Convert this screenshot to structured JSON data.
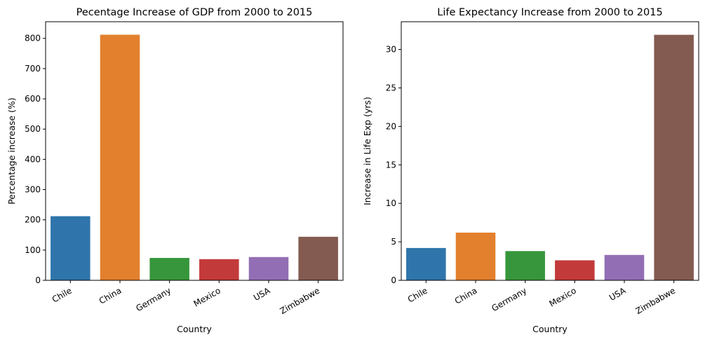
{
  "chart_data": [
    {
      "type": "bar",
      "title": "Pecentage Increase of GDP from 2000 to 2015",
      "xlabel": "Country",
      "ylabel": "Percentage increase (%)",
      "categories": [
        "Chile",
        "China",
        "Germany",
        "Mexico",
        "USA",
        "Zimbabwe"
      ],
      "values": [
        212,
        812,
        74,
        70,
        77,
        144
      ],
      "colors": [
        "#2f75ab",
        "#e3802e",
        "#37963b",
        "#c33a3a",
        "#926fb5",
        "#845b50"
      ],
      "ylim": [
        0,
        855
      ],
      "yticks": [
        0,
        100,
        200,
        300,
        400,
        500,
        600,
        700,
        800
      ],
      "grid": false,
      "legend": "none"
    },
    {
      "type": "bar",
      "title": "Life Expectancy Increase from 2000 to 2015",
      "xlabel": "Country",
      "ylabel": "Increase in Life Exp (yrs)",
      "categories": [
        "Chile",
        "China",
        "Germany",
        "Mexico",
        "USA",
        "Zimbabwe"
      ],
      "values": [
        4.2,
        6.2,
        3.8,
        2.6,
        3.3,
        31.9
      ],
      "colors": [
        "#2f75ab",
        "#e3802e",
        "#37963b",
        "#c33a3a",
        "#926fb5",
        "#845b50"
      ],
      "ylim": [
        0,
        33.6
      ],
      "yticks": [
        0,
        5,
        10,
        15,
        20,
        25,
        30
      ],
      "grid": false,
      "legend": "none"
    }
  ]
}
